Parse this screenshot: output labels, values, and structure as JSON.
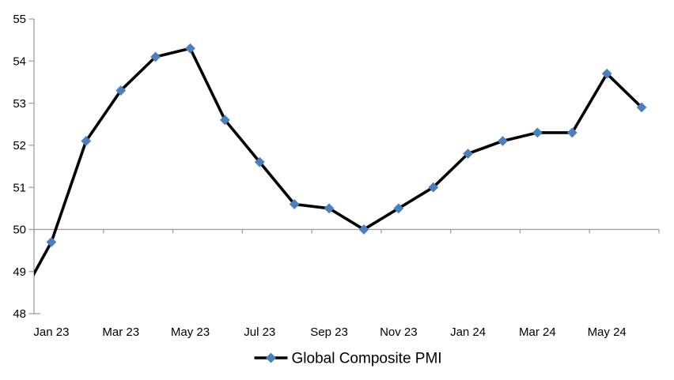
{
  "chart_data": {
    "type": "line",
    "series": [
      {
        "name": "Global Composite PMI",
        "categories": [
          "Jan 23",
          "Feb 23",
          "Mar 23",
          "Apr 23",
          "May 23",
          "Jun 23",
          "Jul 23",
          "Aug 23",
          "Sep 23",
          "Oct 23",
          "Nov 23",
          "Dec 23",
          "Jan 24",
          "Feb 24",
          "Mar 24",
          "Apr 24",
          "May 24",
          "Jun 24"
        ],
        "values": [
          49.7,
          52.1,
          53.3,
          54.1,
          54.3,
          52.6,
          51.6,
          50.6,
          50.5,
          50.0,
          50.5,
          51.0,
          51.8,
          52.1,
          52.3,
          52.3,
          53.7,
          52.9
        ],
        "lead_in_value": 48.2,
        "lead_in_months_before_first": 1
      }
    ],
    "x_axis": {
      "tick_labels": [
        "Jan 23",
        "Mar 23",
        "May 23",
        "Jul 23",
        "Sep 23",
        "Nov 23",
        "Jan 24",
        "Mar 24",
        "May 24"
      ],
      "labels_every_n_months": 2,
      "label_position": "low"
    },
    "y_axis": {
      "ticks": [
        48,
        49,
        50,
        51,
        52,
        53,
        54,
        55
      ],
      "range": [
        48,
        55
      ]
    },
    "baseline_value": 50,
    "legend": {
      "label": "Global Composite PMI",
      "position": "bottom-center"
    },
    "grid": "off",
    "colors": {
      "line": "#000000",
      "marker": "#4C7FBD",
      "axis": "#A0A0A0",
      "text": "#000000",
      "background": "#FFFFFF"
    }
  }
}
